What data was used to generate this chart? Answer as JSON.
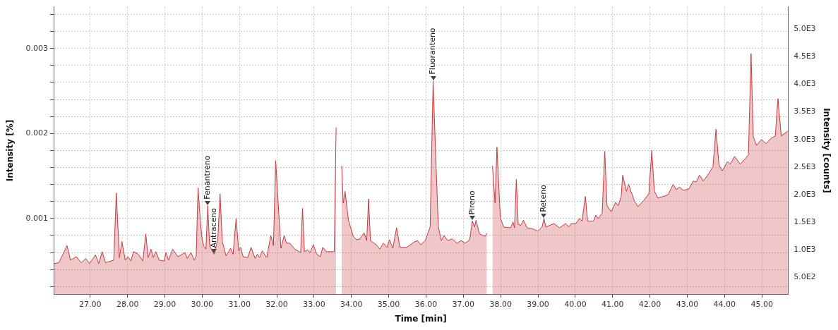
{
  "chart_data": {
    "type": "area",
    "xlabel": "Time [min]",
    "ylabel": "Intensity [%]",
    "y2label": "Intensity [counts]",
    "xlim": [
      26.02,
      45.7
    ],
    "xticks": [
      {
        "value": 27,
        "label": "27.00"
      },
      {
        "value": 28,
        "label": "28.00"
      },
      {
        "value": 29,
        "label": "29.00"
      },
      {
        "value": 30,
        "label": "30.00"
      },
      {
        "value": 31,
        "label": "31.00"
      },
      {
        "value": 32,
        "label": "32.00"
      },
      {
        "value": 33,
        "label": "33.00"
      },
      {
        "value": 34,
        "label": "34.00"
      },
      {
        "value": 35,
        "label": "35.00"
      },
      {
        "value": 36,
        "label": "36.00"
      },
      {
        "value": 37,
        "label": "37.00"
      },
      {
        "value": 38,
        "label": "38.00"
      },
      {
        "value": 39,
        "label": "39.00"
      },
      {
        "value": 40,
        "label": "40.00"
      },
      {
        "value": 41,
        "label": "41.00"
      },
      {
        "value": 42,
        "label": "42.00"
      },
      {
        "value": 43,
        "label": "43.00"
      },
      {
        "value": 44,
        "label": "44.00"
      },
      {
        "value": 45,
        "label": "45.00"
      }
    ],
    "ylim": [
      0.000108,
      0.00349
    ],
    "yticks": [
      {
        "value": 0.0002,
        "label": null
      },
      {
        "value": 0.0004,
        "label": null
      },
      {
        "value": 0.0006,
        "label": null
      },
      {
        "value": 0.0008,
        "label": null
      },
      0.001,
      {
        "value": 0.0012,
        "label": null
      },
      {
        "value": 0.0014,
        "label": null
      },
      {
        "value": 0.0016,
        "label": null
      },
      {
        "value": 0.0018,
        "label": null
      },
      0.002,
      {
        "value": 0.0022,
        "label": null
      },
      {
        "value": 0.0024,
        "label": null
      },
      {
        "value": 0.0026,
        "label": null
      },
      {
        "value": 0.0028,
        "label": null
      },
      0.003,
      {
        "value": 0.0032,
        "label": null
      },
      {
        "value": 0.0034,
        "label": null
      }
    ],
    "y2lim": [
      188,
      5407
    ],
    "y2ticks": [
      {
        "value": 500,
        "label": "5.0E2"
      },
      {
        "value": 1000,
        "label": "1.0E3"
      },
      {
        "value": 1500,
        "label": "1.5E3"
      },
      {
        "value": 2000,
        "label": "2.0E3"
      },
      {
        "value": 2500,
        "label": "2.5E3"
      },
      {
        "value": 3000,
        "label": "3.0E3"
      },
      {
        "value": 3500,
        "label": "3.5E3"
      },
      {
        "value": 4000,
        "label": "4.0E3"
      },
      {
        "value": 4500,
        "label": "4.5E3"
      },
      {
        "value": 5000,
        "label": "5.0E3"
      }
    ],
    "grid": true,
    "legend": false,
    "marker": "none",
    "line_style": "solid",
    "series": [
      {
        "color": "#c8383c",
        "x": [
          26.03,
          26.16,
          26.38,
          26.47,
          26.63,
          26.76,
          26.88,
          26.98,
          27.14,
          27.23,
          27.32,
          27.41,
          27.63,
          27.7,
          27.78,
          27.85,
          27.94,
          28.01,
          28.09,
          28.16,
          28.29,
          28.41,
          28.49,
          28.55,
          28.63,
          28.69,
          28.76,
          28.85,
          28.98,
          29.03,
          29.1,
          29.21,
          29.35,
          29.54,
          29.6,
          29.7,
          29.79,
          29.84,
          29.89,
          29.95,
          29.99,
          30.04,
          30.1,
          30.15,
          30.2,
          30.32,
          30.42,
          30.48,
          30.54,
          30.64,
          30.76,
          30.83,
          30.91,
          30.98,
          31.03,
          31.1,
          31.22,
          31.31,
          31.42,
          31.48,
          31.54,
          31.61,
          31.73,
          31.84,
          31.91,
          31.97,
          32.11,
          32.2,
          32.26,
          32.35,
          32.48,
          32.64,
          32.69,
          32.74,
          32.82,
          32.89,
          32.98,
          33.07,
          33.17,
          33.23,
          33.33,
          33.54,
          33.59,
          33.64,
          33.7,
          33.74,
          33.78,
          33.83,
          33.92,
          34.05,
          34.14,
          34.23,
          34.34,
          34.41,
          34.46,
          34.51,
          34.67,
          34.76,
          34.86,
          34.95,
          35.02,
          35.11,
          35.21,
          35.3,
          35.48,
          35.67,
          35.77,
          35.86,
          35.98,
          36.11,
          36.19,
          36.25,
          36.33,
          36.41,
          36.48,
          36.58,
          36.7,
          36.83,
          36.94,
          37.05,
          37.17,
          37.24,
          37.3,
          37.34,
          37.43,
          37.58,
          37.63,
          37.66,
          37.72,
          37.78,
          37.85,
          37.9,
          37.99,
          38.08,
          38.27,
          38.33,
          38.37,
          38.42,
          38.47,
          38.54,
          38.61,
          38.71,
          38.86,
          38.99,
          39.11,
          39.16,
          39.21,
          39.43,
          39.58,
          39.74,
          39.83,
          39.89,
          40.02,
          40.11,
          40.18,
          40.27,
          40.33,
          40.49,
          40.55,
          40.61,
          40.72,
          40.79,
          40.85,
          40.96,
          41.08,
          41.15,
          41.23,
          41.27,
          41.37,
          41.43,
          41.58,
          41.68,
          41.83,
          41.97,
          42.05,
          42.12,
          42.21,
          42.36,
          42.49,
          42.62,
          42.71,
          42.79,
          42.9,
          43.05,
          43.16,
          43.24,
          43.33,
          43.43,
          43.55,
          43.69,
          43.77,
          43.85,
          43.94,
          44.08,
          44.15,
          44.27,
          44.42,
          44.55,
          44.64,
          44.71,
          44.77,
          44.86,
          44.99,
          45.11,
          45.24,
          45.36,
          45.43,
          45.52,
          45.7
        ],
        "values": [
          0.00047,
          0.00048,
          0.00068,
          0.00051,
          0.00055,
          0.00048,
          0.00053,
          0.00047,
          0.00057,
          0.00047,
          0.00061,
          0.00048,
          0.00051,
          0.0013,
          0.00054,
          0.00073,
          0.00051,
          0.00055,
          0.0005,
          0.00061,
          0.00058,
          0.0005,
          0.00082,
          0.00054,
          0.00064,
          0.00054,
          0.00061,
          0.00051,
          0.0005,
          0.0006,
          0.00051,
          0.00064,
          0.00055,
          0.0006,
          0.00053,
          0.0006,
          0.00051,
          0.00056,
          0.00136,
          0.00098,
          0.00079,
          0.00068,
          0.00064,
          0.00115,
          0.00068,
          0.00058,
          0.00076,
          0.00129,
          0.00073,
          0.00056,
          0.00065,
          0.00058,
          0.001,
          0.00062,
          0.00066,
          0.00055,
          0.00054,
          0.00066,
          0.00053,
          0.00058,
          0.00054,
          0.00062,
          0.00054,
          0.0008,
          0.00068,
          0.00168,
          0.00065,
          0.0008,
          0.00071,
          0.00071,
          0.00064,
          0.0006,
          0.00112,
          0.00061,
          0.00063,
          0.0006,
          0.00069,
          0.00058,
          0.00055,
          0.00066,
          0.00061,
          0.00061,
          0.00207,
          null,
          null,
          0.00162,
          0.00118,
          0.00132,
          0.00098,
          0.00079,
          0.00075,
          0.00076,
          0.00083,
          0.00074,
          0.00123,
          0.00074,
          0.00069,
          0.00064,
          0.00071,
          0.00066,
          0.00075,
          0.00065,
          0.00089,
          0.00066,
          0.00066,
          0.00072,
          0.00074,
          0.00069,
          0.00074,
          0.0009,
          0.00262,
          0.00184,
          0.0009,
          0.00074,
          0.0008,
          0.00074,
          0.00076,
          0.00071,
          0.00074,
          0.00071,
          0.00075,
          0.00097,
          0.0009,
          0.00098,
          0.00082,
          0.00079,
          0.00083,
          null,
          null,
          0.00162,
          0.00118,
          0.00184,
          0.00101,
          0.0009,
          0.00089,
          0.00096,
          0.00089,
          0.00146,
          0.00093,
          0.00092,
          0.00098,
          0.00089,
          0.00088,
          0.00085,
          0.0009,
          0.001,
          0.0009,
          0.00094,
          0.00089,
          0.00094,
          0.0009,
          0.00094,
          0.00094,
          0.001,
          0.00097,
          0.00126,
          0.00097,
          0.00097,
          0.00104,
          0.001,
          0.00106,
          0.00179,
          0.00115,
          0.00108,
          0.00119,
          0.00115,
          0.00126,
          0.00151,
          0.00132,
          0.0014,
          0.00121,
          0.00114,
          0.00121,
          0.00129,
          0.0018,
          0.00132,
          0.00124,
          0.00126,
          0.00128,
          0.0014,
          0.00134,
          0.00137,
          0.00133,
          0.00135,
          0.00144,
          0.00143,
          0.00151,
          0.00144,
          0.00151,
          0.00161,
          0.00205,
          0.00163,
          0.00156,
          0.00167,
          0.00164,
          0.00173,
          0.00164,
          0.0017,
          0.00175,
          0.00294,
          0.00196,
          0.00186,
          0.00193,
          0.00188,
          0.00194,
          0.00197,
          0.00241,
          0.00197,
          0.00203
        ]
      }
    ],
    "annotations": [
      {
        "text": "Fenantreno",
        "x": 30.15,
        "y": 0.00115
      },
      {
        "text": "Antraceno",
        "x": 30.32,
        "y": 0.00058
      },
      {
        "text": "Fluoranteno",
        "x": 36.19,
        "y": 0.00262
      },
      {
        "text": "Pireno",
        "x": 37.24,
        "y": 0.00097
      },
      {
        "text": "Reteno",
        "x": 39.16,
        "y": 0.001
      }
    ]
  }
}
